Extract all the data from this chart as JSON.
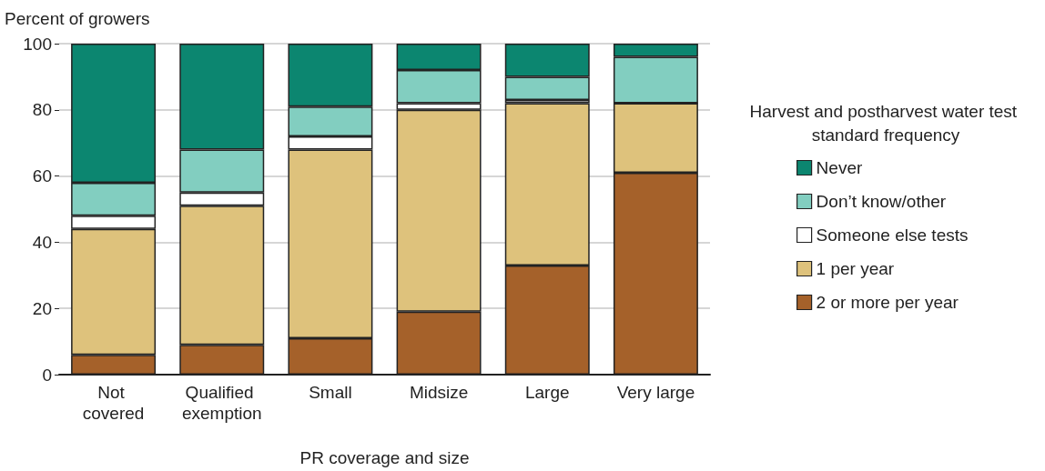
{
  "chart_data": {
    "type": "bar",
    "stacked": true,
    "xlabel": "PR coverage and size",
    "ylabel": "Percent of growers",
    "legend_title": "Harvest and postharvest water test standard frequency",
    "categories": [
      "Not covered",
      "Qualified exemption",
      "Small",
      "Midsize",
      "Large",
      "Very large"
    ],
    "series": [
      {
        "name": "2 or more per year",
        "color": "#a5612a",
        "values": [
          6,
          9,
          11,
          19,
          33,
          61
        ]
      },
      {
        "name": "1 per year",
        "color": "#dec27c",
        "values": [
          38,
          42,
          57,
          61,
          49,
          21
        ]
      },
      {
        "name": "Someone else tests",
        "color": "#ffffff",
        "values": [
          4,
          4,
          4,
          2,
          1,
          0
        ]
      },
      {
        "name": "Don’t know/other",
        "color": "#82cec0",
        "values": [
          10,
          13,
          9,
          10,
          7,
          14
        ]
      },
      {
        "name": "Never",
        "color": "#0c8670",
        "values": [
          42,
          32,
          19,
          8,
          10,
          4
        ]
      }
    ],
    "ylim": [
      0,
      100
    ],
    "yticks": [
      0,
      20,
      40,
      60,
      80,
      100
    ],
    "grid": "y",
    "legend": "right"
  }
}
